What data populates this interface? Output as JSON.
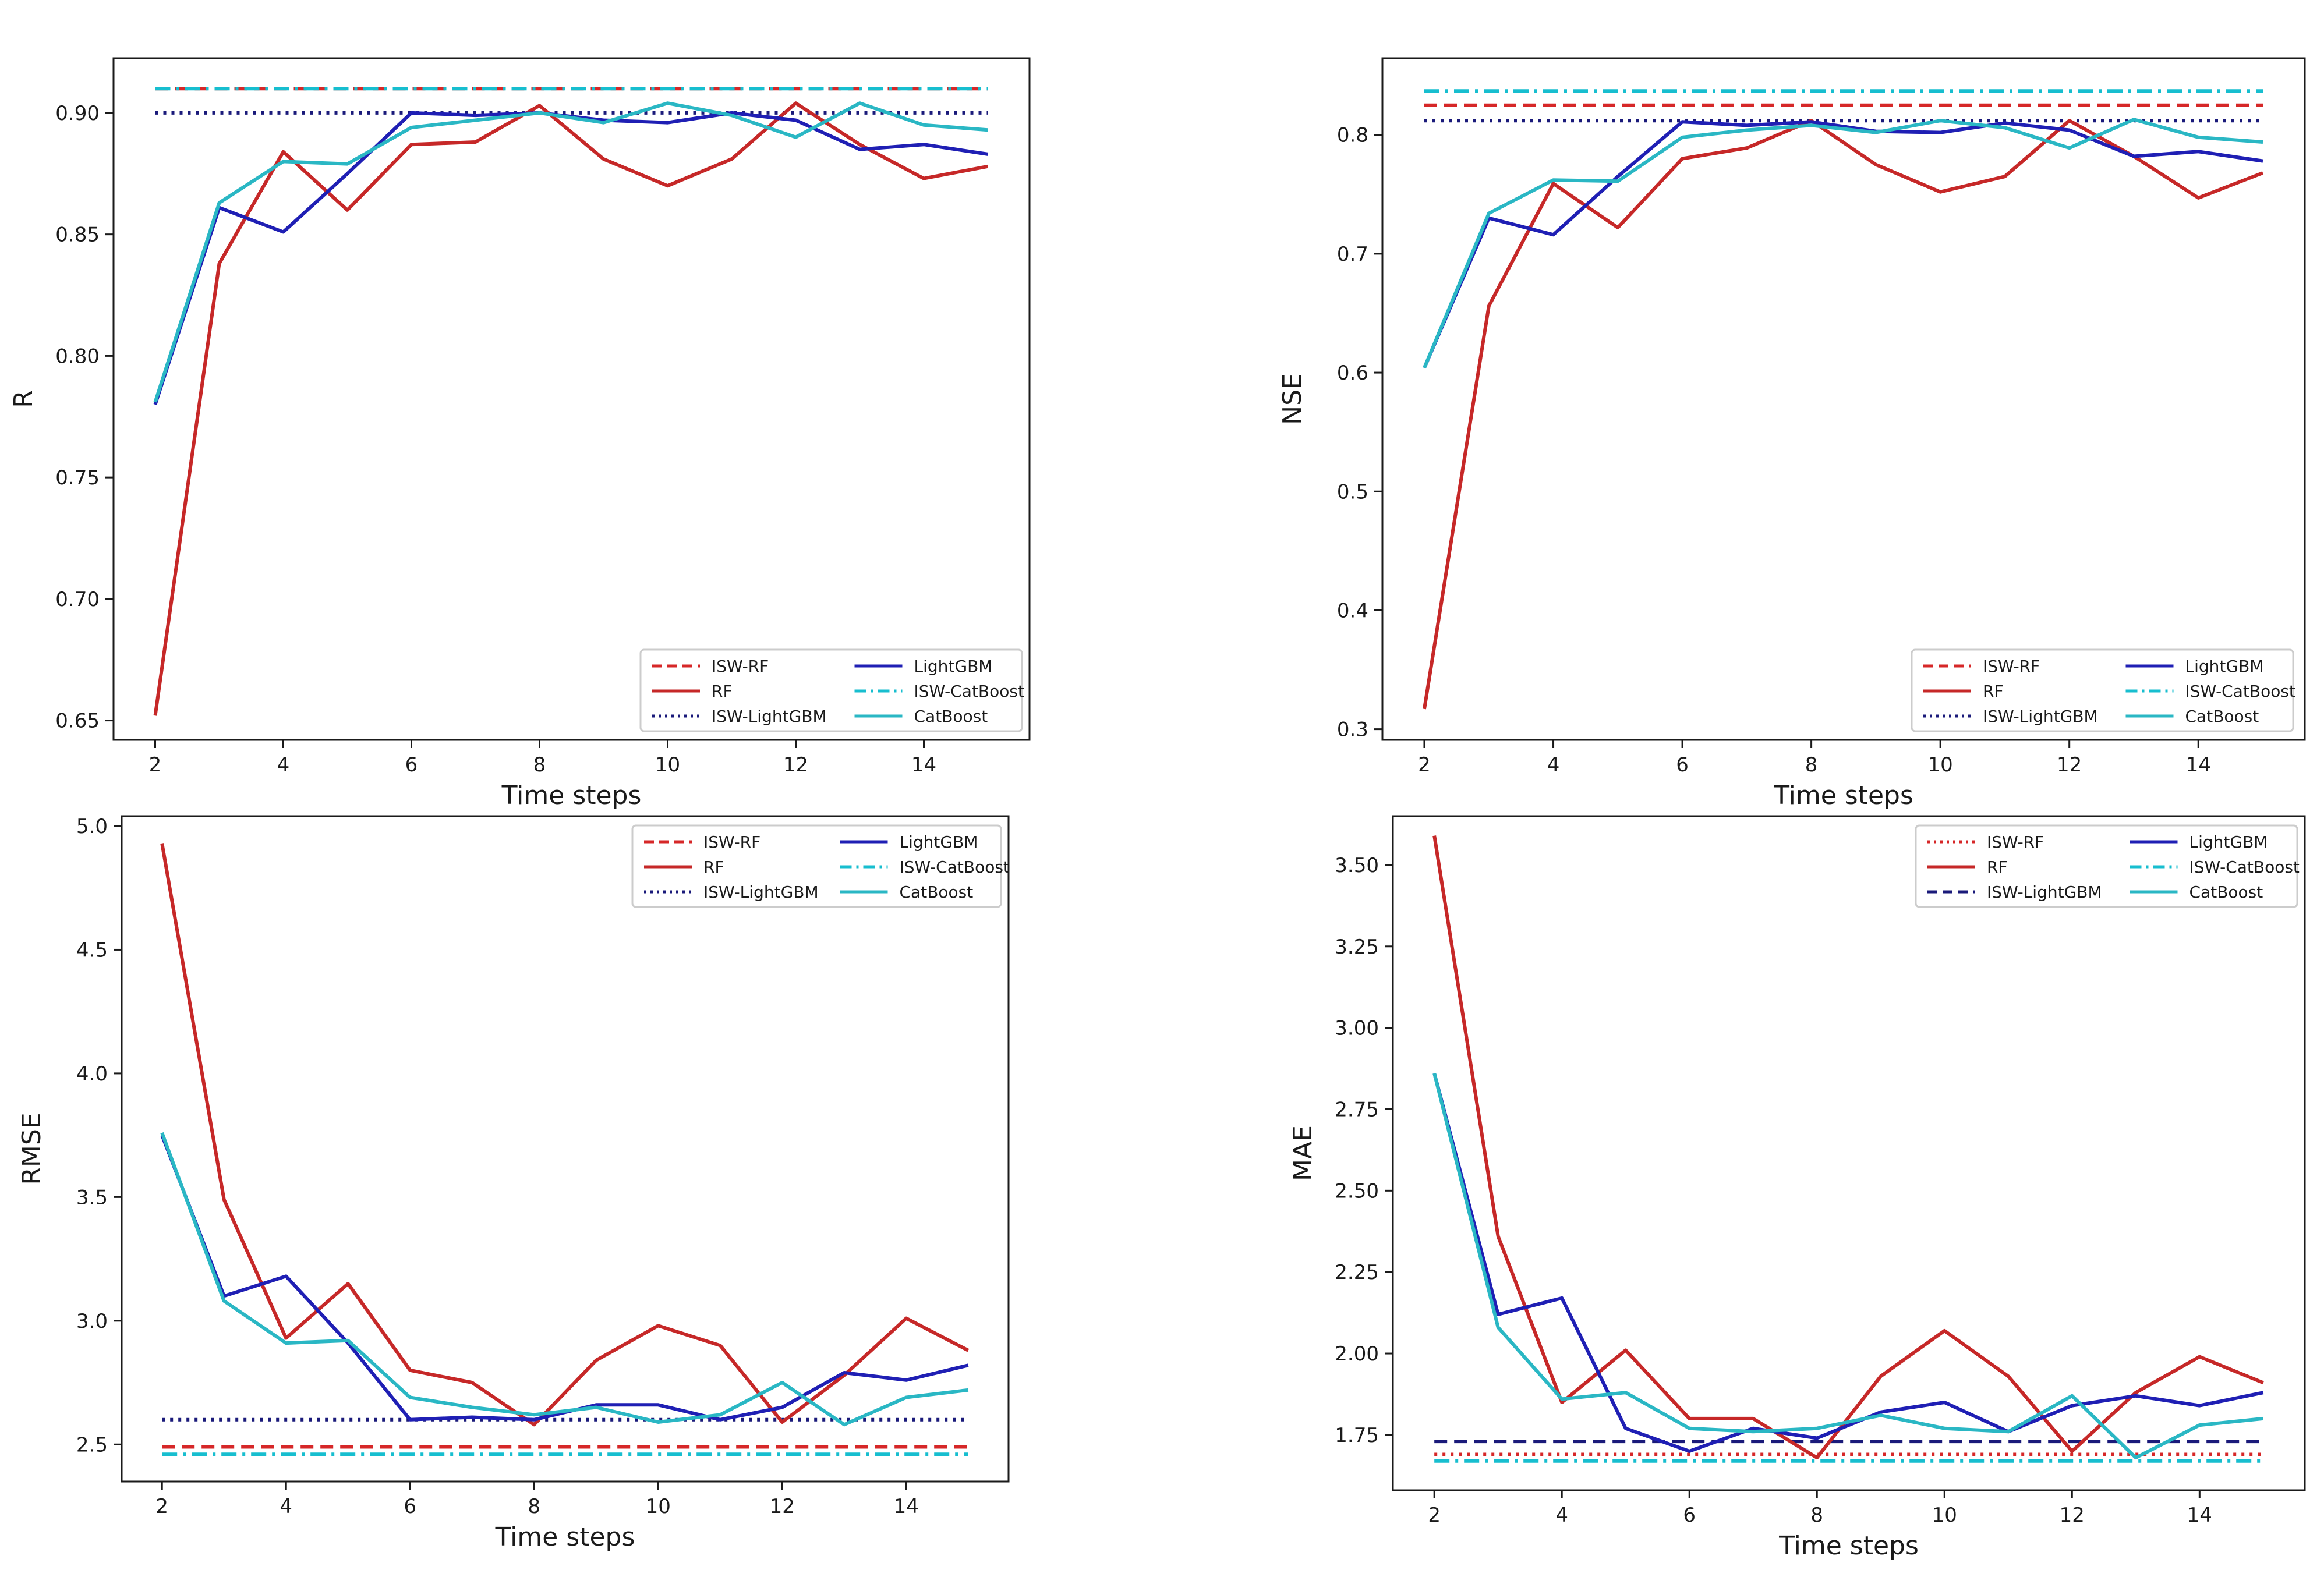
{
  "colors": {
    "isw_rf": "#d62728",
    "rf": "#c62828",
    "isw_lightgbm": "#1a1a7a",
    "lightgbm": "#1f1fb4",
    "isw_catboost": "#17becf",
    "catboost": "#2ab7c4",
    "axis": "#1a1a1a",
    "legend_border": "#cccccc"
  },
  "chart_data": [
    {
      "type": "line",
      "id": "r",
      "title": "",
      "xlabel": "Time steps",
      "ylabel": "R",
      "xlim": [
        1.35,
        15.65
      ],
      "ylim": [
        0.642,
        0.9225
      ],
      "xticks": [
        2,
        4,
        6,
        8,
        10,
        12,
        14
      ],
      "yticks": [
        0.65,
        0.7,
        0.75,
        0.8,
        0.85,
        0.9
      ],
      "ytick_labels": [
        "0.65",
        "0.70",
        "0.75",
        "0.80",
        "0.85",
        "0.90"
      ],
      "legend_position": "lower-right",
      "x": [
        2,
        3,
        4,
        5,
        6,
        7,
        8,
        9,
        10,
        11,
        12,
        13,
        14,
        15
      ],
      "series": [
        {
          "name": "ISW-RF",
          "style": "dashed",
          "color_key": "isw_rf",
          "values": [
            0.91,
            0.91,
            0.91,
            0.91,
            0.91,
            0.91,
            0.91,
            0.91,
            0.91,
            0.91,
            0.91,
            0.91,
            0.91,
            0.91
          ]
        },
        {
          "name": "RF",
          "style": "solid",
          "color_key": "rf",
          "values": [
            0.652,
            0.838,
            0.884,
            0.86,
            0.887,
            0.888,
            0.903,
            0.881,
            0.87,
            0.881,
            0.904,
            0.887,
            0.873,
            0.878
          ]
        },
        {
          "name": "ISW-LightGBM",
          "style": "dotted",
          "color_key": "isw_lightgbm",
          "values": [
            0.9,
            0.9,
            0.9,
            0.9,
            0.9,
            0.9,
            0.9,
            0.9,
            0.9,
            0.9,
            0.9,
            0.9,
            0.9,
            0.9
          ]
        },
        {
          "name": "LightGBM",
          "style": "solid",
          "color_key": "lightgbm",
          "values": [
            0.78,
            0.861,
            0.851,
            0.875,
            0.9,
            0.899,
            0.9,
            0.897,
            0.896,
            0.9,
            0.897,
            0.885,
            0.887,
            0.883
          ]
        },
        {
          "name": "ISW-CatBoost",
          "style": "dashdot",
          "color_key": "isw_catboost",
          "values": [
            0.91,
            0.91,
            0.91,
            0.91,
            0.91,
            0.91,
            0.91,
            0.91,
            0.91,
            0.91,
            0.91,
            0.91,
            0.91,
            0.91
          ]
        },
        {
          "name": "CatBoost",
          "style": "solid",
          "color_key": "catboost",
          "values": [
            0.781,
            0.863,
            0.88,
            0.879,
            0.894,
            0.897,
            0.9,
            0.896,
            0.904,
            0.899,
            0.89,
            0.904,
            0.895,
            0.893
          ]
        }
      ]
    },
    {
      "type": "line",
      "id": "nse",
      "title": "",
      "xlabel": "Time steps",
      "ylabel": "NSE",
      "xlim": [
        1.35,
        15.65
      ],
      "ylim": [
        0.291,
        0.8645
      ],
      "xticks": [
        2,
        4,
        6,
        8,
        10,
        12,
        14
      ],
      "yticks": [
        0.3,
        0.4,
        0.5,
        0.6,
        0.7,
        0.8
      ],
      "ytick_labels": [
        "0.3",
        "0.4",
        "0.5",
        "0.6",
        "0.7",
        "0.8"
      ],
      "legend_position": "lower-right",
      "x": [
        2,
        3,
        4,
        5,
        6,
        7,
        8,
        9,
        10,
        11,
        12,
        13,
        14,
        15
      ],
      "series": [
        {
          "name": "ISW-RF",
          "style": "dashed",
          "color_key": "isw_rf",
          "values": [
            0.825,
            0.825,
            0.825,
            0.825,
            0.825,
            0.825,
            0.825,
            0.825,
            0.825,
            0.825,
            0.825,
            0.825,
            0.825,
            0.825
          ]
        },
        {
          "name": "RF",
          "style": "solid",
          "color_key": "rf",
          "values": [
            0.317,
            0.656,
            0.759,
            0.722,
            0.78,
            0.789,
            0.812,
            0.775,
            0.752,
            0.765,
            0.812,
            0.782,
            0.747,
            0.768
          ]
        },
        {
          "name": "ISW-LightGBM",
          "style": "dotted",
          "color_key": "isw_lightgbm",
          "values": [
            0.812,
            0.812,
            0.812,
            0.812,
            0.812,
            0.812,
            0.812,
            0.812,
            0.812,
            0.812,
            0.812,
            0.812,
            0.812,
            0.812
          ]
        },
        {
          "name": "LightGBM",
          "style": "solid",
          "color_key": "lightgbm",
          "values": [
            0.604,
            0.73,
            0.716,
            0.765,
            0.811,
            0.808,
            0.811,
            0.803,
            0.802,
            0.81,
            0.804,
            0.782,
            0.786,
            0.778
          ]
        },
        {
          "name": "ISW-CatBoost",
          "style": "dashdot",
          "color_key": "isw_catboost",
          "values": [
            0.837,
            0.837,
            0.837,
            0.837,
            0.837,
            0.837,
            0.837,
            0.837,
            0.837,
            0.837,
            0.837,
            0.837,
            0.837,
            0.837
          ]
        },
        {
          "name": "CatBoost",
          "style": "solid",
          "color_key": "catboost",
          "values": [
            0.604,
            0.734,
            0.762,
            0.761,
            0.798,
            0.804,
            0.808,
            0.802,
            0.812,
            0.806,
            0.789,
            0.813,
            0.798,
            0.794
          ]
        }
      ]
    },
    {
      "type": "line",
      "id": "rmse",
      "title": "",
      "xlabel": "Time steps",
      "ylabel": "RMSE",
      "xlim": [
        1.35,
        15.65
      ],
      "ylim": [
        2.35,
        5.04
      ],
      "xticks": [
        2,
        4,
        6,
        8,
        10,
        12,
        14
      ],
      "yticks": [
        2.5,
        3.0,
        3.5,
        4.0,
        4.5,
        5.0
      ],
      "ytick_labels": [
        "2.5",
        "3.0",
        "3.5",
        "4.0",
        "4.5",
        "5.0"
      ],
      "legend_position": "upper-right",
      "x": [
        2,
        3,
        4,
        5,
        6,
        7,
        8,
        9,
        10,
        11,
        12,
        13,
        14,
        15
      ],
      "series": [
        {
          "name": "ISW-RF",
          "style": "dashed",
          "color_key": "isw_rf",
          "values": [
            2.49,
            2.49,
            2.49,
            2.49,
            2.49,
            2.49,
            2.49,
            2.49,
            2.49,
            2.49,
            2.49,
            2.49,
            2.49,
            2.49
          ]
        },
        {
          "name": "RF",
          "style": "solid",
          "color_key": "rf",
          "values": [
            4.93,
            3.49,
            2.93,
            3.15,
            2.8,
            2.75,
            2.58,
            2.84,
            2.98,
            2.9,
            2.59,
            2.78,
            3.01,
            2.88
          ]
        },
        {
          "name": "ISW-LightGBM",
          "style": "dotted",
          "color_key": "isw_lightgbm",
          "values": [
            2.6,
            2.6,
            2.6,
            2.6,
            2.6,
            2.6,
            2.6,
            2.6,
            2.6,
            2.6,
            2.6,
            2.6,
            2.6,
            2.6
          ]
        },
        {
          "name": "LightGBM",
          "style": "solid",
          "color_key": "lightgbm",
          "values": [
            3.75,
            3.1,
            3.18,
            2.91,
            2.6,
            2.61,
            2.6,
            2.66,
            2.66,
            2.6,
            2.65,
            2.79,
            2.76,
            2.82
          ]
        },
        {
          "name": "ISW-CatBoost",
          "style": "dashdot",
          "color_key": "isw_catboost",
          "values": [
            2.46,
            2.46,
            2.46,
            2.46,
            2.46,
            2.46,
            2.46,
            2.46,
            2.46,
            2.46,
            2.46,
            2.46,
            2.46,
            2.46
          ]
        },
        {
          "name": "CatBoost",
          "style": "solid",
          "color_key": "catboost",
          "values": [
            3.76,
            3.08,
            2.91,
            2.92,
            2.69,
            2.65,
            2.62,
            2.65,
            2.59,
            2.62,
            2.75,
            2.58,
            2.69,
            2.72
          ]
        }
      ]
    },
    {
      "type": "line",
      "id": "mae",
      "title": "",
      "xlabel": "Time steps",
      "ylabel": "MAE",
      "xlim": [
        1.35,
        15.65
      ],
      "ylim": [
        1.58,
        3.65
      ],
      "xticks": [
        2,
        4,
        6,
        8,
        10,
        12,
        14
      ],
      "yticks": [
        1.75,
        2.0,
        2.25,
        2.5,
        2.75,
        3.0,
        3.25,
        3.5
      ],
      "ytick_labels": [
        "1.75",
        "2.00",
        "2.25",
        "2.50",
        "2.75",
        "3.00",
        "3.25",
        "3.50"
      ],
      "legend_position": "upper-right",
      "x": [
        2,
        3,
        4,
        5,
        6,
        7,
        8,
        9,
        10,
        11,
        12,
        13,
        14,
        15
      ],
      "series": [
        {
          "name": "ISW-RF",
          "style": "dotted",
          "color_key": "isw_rf",
          "values": [
            1.69,
            1.69,
            1.69,
            1.69,
            1.69,
            1.69,
            1.69,
            1.69,
            1.69,
            1.69,
            1.69,
            1.69,
            1.69,
            1.69
          ]
        },
        {
          "name": "RF",
          "style": "solid",
          "color_key": "rf",
          "values": [
            3.59,
            2.36,
            1.85,
            2.01,
            1.8,
            1.8,
            1.68,
            1.93,
            2.07,
            1.93,
            1.7,
            1.88,
            1.99,
            1.91
          ]
        },
        {
          "name": "ISW-LightGBM",
          "style": "dashed",
          "color_key": "isw_lightgbm",
          "values": [
            1.73,
            1.73,
            1.73,
            1.73,
            1.73,
            1.73,
            1.73,
            1.73,
            1.73,
            1.73,
            1.73,
            1.73,
            1.73,
            1.73
          ]
        },
        {
          "name": "LightGBM",
          "style": "solid",
          "color_key": "lightgbm",
          "values": [
            2.86,
            2.12,
            2.17,
            1.77,
            1.7,
            1.77,
            1.74,
            1.82,
            1.85,
            1.76,
            1.84,
            1.87,
            1.84,
            1.88
          ]
        },
        {
          "name": "ISW-CatBoost",
          "style": "dashdot",
          "color_key": "isw_catboost",
          "values": [
            1.67,
            1.67,
            1.67,
            1.67,
            1.67,
            1.67,
            1.67,
            1.67,
            1.67,
            1.67,
            1.67,
            1.67,
            1.67,
            1.67
          ]
        },
        {
          "name": "CatBoost",
          "style": "solid",
          "color_key": "catboost",
          "values": [
            2.86,
            2.08,
            1.86,
            1.88,
            1.77,
            1.76,
            1.77,
            1.81,
            1.77,
            1.76,
            1.87,
            1.68,
            1.78,
            1.8
          ]
        }
      ]
    }
  ]
}
